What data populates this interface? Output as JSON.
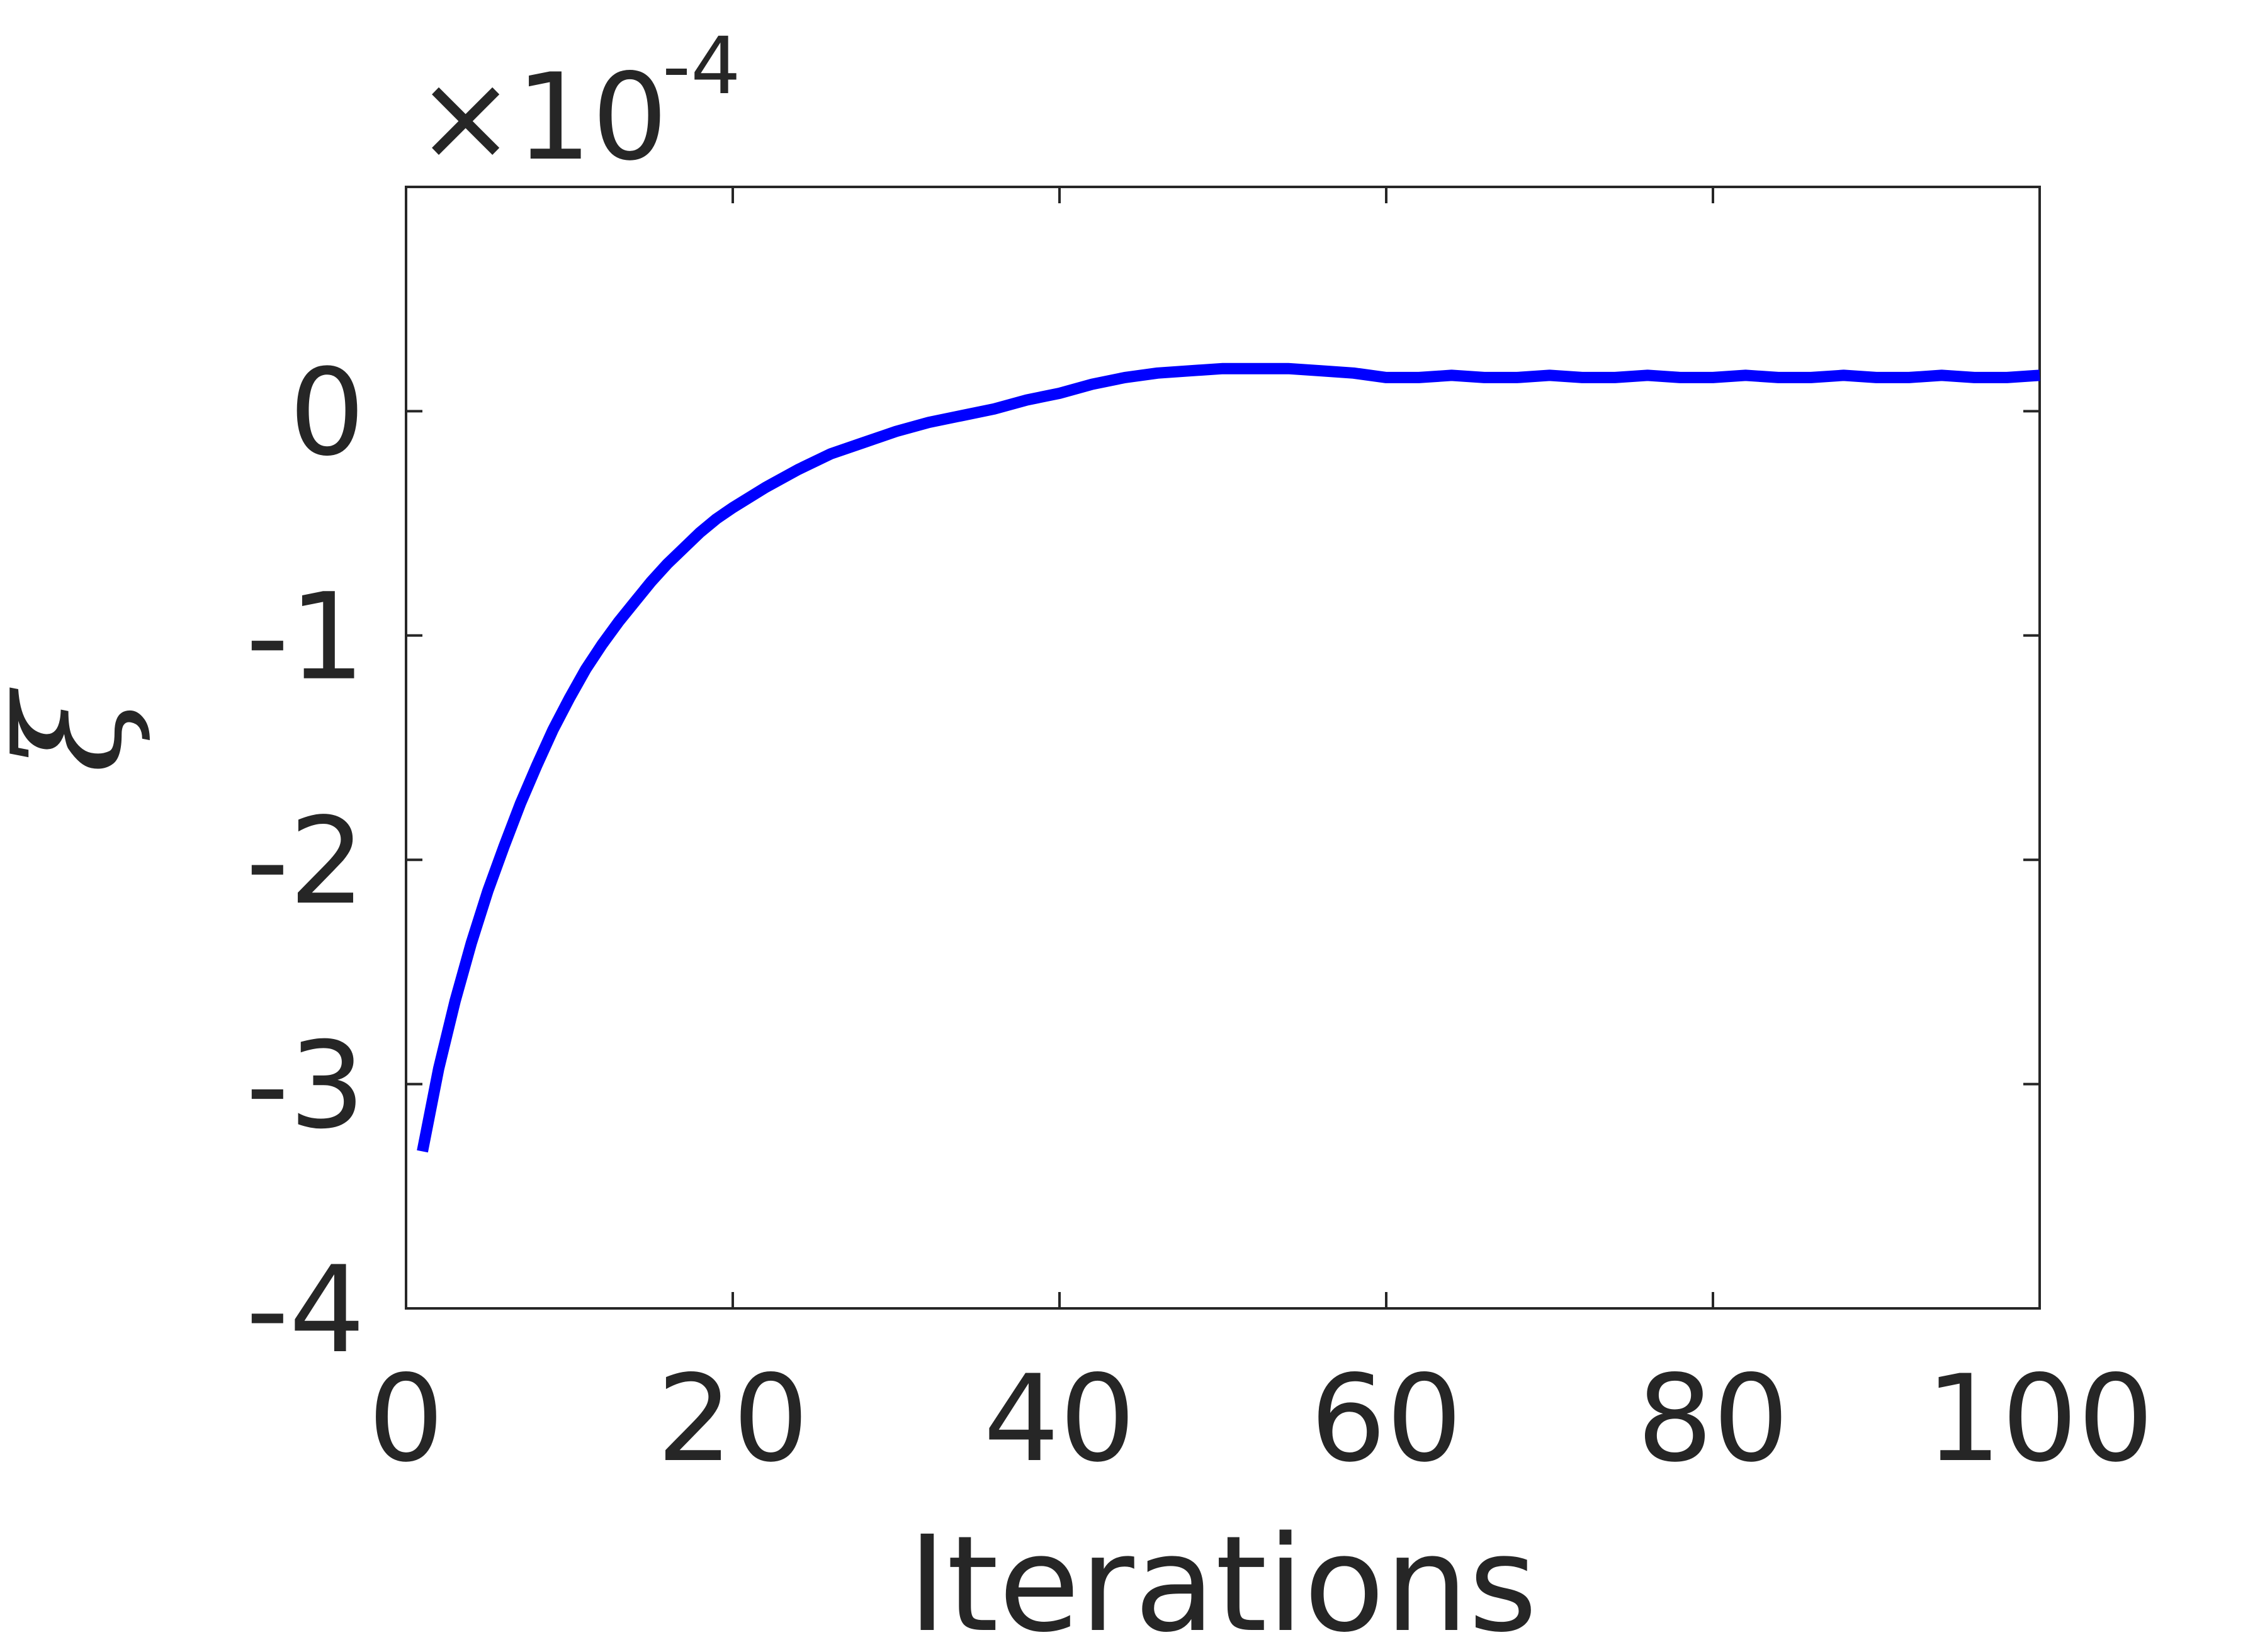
{
  "chart_data": {
    "type": "line",
    "title": "",
    "xlabel": "Iterations",
    "ylabel": "ξ",
    "y_multiplier_base": "×10",
    "y_multiplier_exponent": "-4",
    "xlim": [
      0,
      100
    ],
    "ylim": [
      -4,
      1
    ],
    "x_ticks": [
      0,
      20,
      40,
      60,
      80,
      100
    ],
    "x_tick_labels": [
      "0",
      "20",
      "40",
      "60",
      "80",
      "100"
    ],
    "y_ticks": [
      -4,
      -3,
      -2,
      -1,
      0
    ],
    "y_tick_labels": [
      "-4",
      "-3",
      "-2",
      "-1",
      "0"
    ],
    "grid": false,
    "box": true,
    "series": [
      {
        "color": "#0000ff",
        "x": [
          1,
          2,
          3,
          4,
          5,
          6,
          7,
          8,
          9,
          10,
          11,
          12,
          13,
          14,
          15,
          16,
          17,
          18,
          19,
          20,
          22,
          24,
          26,
          28,
          30,
          32,
          34,
          36,
          38,
          40,
          42,
          44,
          46,
          48,
          50,
          52,
          54,
          56,
          58,
          60,
          62,
          64,
          66,
          68,
          70,
          72,
          74,
          76,
          78,
          80,
          82,
          84,
          86,
          88,
          90,
          92,
          94,
          96,
          98,
          100
        ],
        "y": [
          -3.3,
          -2.93,
          -2.63,
          -2.37,
          -2.14,
          -1.94,
          -1.75,
          -1.58,
          -1.42,
          -1.28,
          -1.15,
          -1.04,
          -0.94,
          -0.85,
          -0.76,
          -0.68,
          -0.61,
          -0.54,
          -0.48,
          -0.43,
          -0.34,
          -0.26,
          -0.19,
          -0.14,
          -0.09,
          -0.05,
          -0.02,
          0.01,
          0.05,
          0.08,
          0.12,
          0.15,
          0.17,
          0.18,
          0.19,
          0.19,
          0.19,
          0.18,
          0.17,
          0.15,
          0.15,
          0.16,
          0.15,
          0.15,
          0.16,
          0.15,
          0.15,
          0.16,
          0.15,
          0.15,
          0.16,
          0.15,
          0.15,
          0.16,
          0.15,
          0.15,
          0.16,
          0.15,
          0.15,
          0.16
        ]
      }
    ]
  }
}
